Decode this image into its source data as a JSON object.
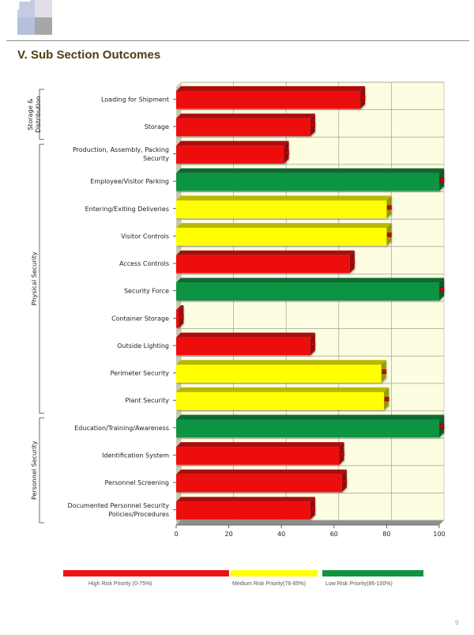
{
  "header": {
    "title": "V. Sub Section Outcomes",
    "logo_colors": [
      "#c5cbe3",
      "#e0dde7",
      "#b5bfdd",
      "#a7a7a7"
    ]
  },
  "colors": {
    "high": "#ee1111",
    "medium": "#ffff00",
    "low": "#109442",
    "plot_background": "#fdfde1",
    "grid": "#a0a0a0"
  },
  "legend": [
    {
      "label": "High Risk Priority (0-75%)",
      "color": "#ee1111"
    },
    {
      "label": "Medium Risk Priority(76-85%)",
      "color": "#ffff00"
    },
    {
      "label": "Low Risk Priority(86-100%)",
      "color": "#109442"
    }
  ],
  "chart_data": {
    "type": "bar",
    "orientation": "horizontal",
    "xlim": [
      0,
      100
    ],
    "ticks": [
      "0",
      "20",
      "40",
      "60",
      "80",
      "100"
    ],
    "grid": true,
    "groups": [
      {
        "label": "Storage & Distribution",
        "start": 0,
        "end": 2
      },
      {
        "label": "Physical Security",
        "start": 2,
        "end": 12
      },
      {
        "label": "Personnel Security",
        "start": 12,
        "end": 16
      }
    ],
    "categories": [
      "Loading for Shipment",
      "Storage",
      "Production, Assembly, Packing Security",
      "Employee/Visitor Parking",
      "Entering/Exiting Deliveries",
      "Visitor Controls",
      "Access Controls",
      "Security Force",
      "Container Storage",
      "Outside Lighting",
      "Perimeter Security",
      "Plant Security",
      "Education/Training/Awareness",
      "Identification System",
      "Personnel Screening",
      "Documented Personnel Security Policies/Procedures"
    ],
    "values": [
      70,
      51,
      41,
      100,
      80,
      80,
      66,
      100,
      1,
      51,
      78,
      79,
      100,
      62,
      63,
      51
    ]
  },
  "page_number": "9"
}
